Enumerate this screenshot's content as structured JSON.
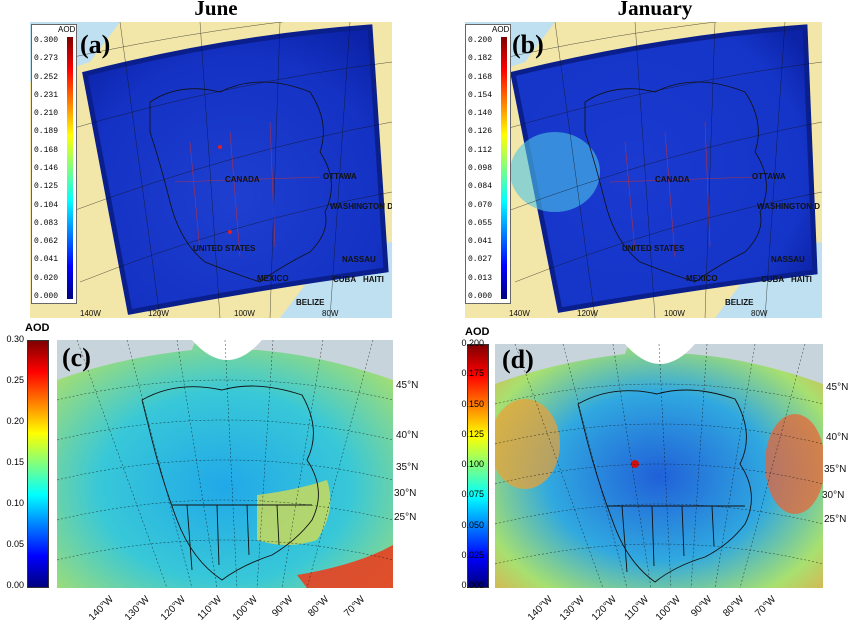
{
  "titles": {
    "left": "June",
    "right": "January"
  },
  "panels": {
    "a": {
      "letter": "(a)",
      "colorbar": {
        "title": "AOD",
        "ticks": [
          "0.300",
          "0.273",
          "0.252",
          "0.231",
          "0.210",
          "0.189",
          "0.168",
          "0.146",
          "0.125",
          "0.104",
          "0.083",
          "0.062",
          "0.041",
          "0.020",
          "0.000"
        ]
      },
      "places": [
        "CANADA",
        "OTTAWA",
        "WASHINGTON D",
        "UNITED STATES",
        "NASSAU",
        "MEXICO",
        "CUBA",
        "HAITI",
        "BELIZE"
      ],
      "lon_labels": [
        "140W",
        "120W",
        "100W",
        "80W"
      ]
    },
    "b": {
      "letter": "(b)",
      "colorbar": {
        "title": "AOD",
        "ticks": [
          "0.200",
          "0.182",
          "0.168",
          "0.154",
          "0.140",
          "0.126",
          "0.112",
          "0.098",
          "0.084",
          "0.070",
          "0.055",
          "0.041",
          "0.027",
          "0.013",
          "0.000"
        ]
      },
      "places": [
        "CANADA",
        "OTTAWA",
        "WASHINGTON D",
        "UNITED STATES",
        "NASSAU",
        "MEXICO",
        "CUBA",
        "HAITI",
        "BELIZE"
      ],
      "lon_labels": [
        "140W",
        "120W",
        "100W",
        "80W"
      ]
    },
    "c": {
      "letter": "(c)",
      "colorbar": {
        "title": "AOD",
        "ticks": [
          "0.30",
          "0.25",
          "0.20",
          "0.15",
          "0.10",
          "0.05",
          "0.00"
        ]
      },
      "lat_labels": [
        "45°N",
        "40°N",
        "35°N",
        "30°N",
        "25°N"
      ],
      "lon_labels": [
        "140°W",
        "130°W",
        "120°W",
        "110°W",
        "100°W",
        "90°W",
        "80°W",
        "70°W"
      ]
    },
    "d": {
      "letter": "(d)",
      "colorbar": {
        "title": "AOD",
        "ticks": [
          "0.200",
          "0.175",
          "0.150",
          "0.125",
          "0.100",
          "0.075",
          "0.050",
          "0.025",
          "0.000"
        ]
      },
      "lat_labels": [
        "45°N",
        "40°N",
        "35°N",
        "30°N",
        "25°N"
      ],
      "lon_labels": [
        "140°W",
        "130°W",
        "120°W",
        "110°W",
        "100°W",
        "90°W",
        "80°W",
        "70°W"
      ]
    }
  },
  "colors": {
    "jet_low": "#00007f",
    "jet_mid": "#7fff7f",
    "jet_high": "#7f0000",
    "land_bg": "#f2e6a8",
    "ocean_bg": "#bfe0f0"
  }
}
